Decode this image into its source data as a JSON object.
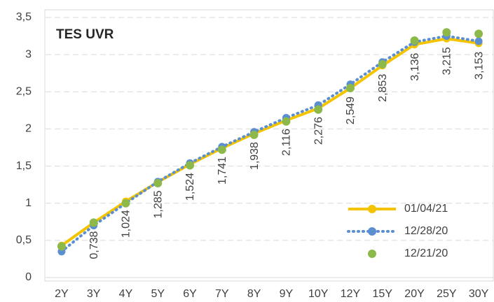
{
  "chart_data": {
    "type": "line",
    "title": "TES UVR",
    "categories": [
      "2Y",
      "3Y",
      "4Y",
      "5Y",
      "6Y",
      "7Y",
      "8Y",
      "9Y",
      "10Y",
      "12Y",
      "15Y",
      "20Y",
      "25Y",
      "30Y"
    ],
    "series": [
      {
        "name": "01/04/21",
        "color": "#f5c400",
        "style": "solid",
        "marker": true,
        "values": [
          0.43,
          0.738,
          1.024,
          1.285,
          1.524,
          1.741,
          1.938,
          2.116,
          2.276,
          2.549,
          2.853,
          3.136,
          3.215,
          3.153
        ],
        "value_labels": [
          null,
          "0,738",
          "1,024",
          "1,285",
          "1,524",
          "1,741",
          "1,938",
          "2,116",
          "2,276",
          "2,549",
          "2,853",
          "3,136",
          "3,215",
          "3,153"
        ]
      },
      {
        "name": "12/28/20",
        "color": "#5b8fd0",
        "style": "dotted",
        "marker": true,
        "values": [
          0.35,
          0.7,
          1.0,
          1.29,
          1.54,
          1.76,
          1.96,
          2.15,
          2.32,
          2.6,
          2.9,
          3.17,
          3.25,
          3.18
        ]
      },
      {
        "name": "12/21/20",
        "color": "#8db94a",
        "style": "none",
        "marker": true,
        "values": [
          0.42,
          0.74,
          1.0,
          1.27,
          1.51,
          1.72,
          1.92,
          2.1,
          2.26,
          2.55,
          2.87,
          3.19,
          3.3,
          3.28
        ]
      }
    ],
    "ylim": [
      0,
      3.5
    ],
    "yticks": [
      0,
      {
        "value": 0.5,
        "label": "0,5"
      },
      1,
      {
        "value": 1.5,
        "label": "1,5"
      },
      2,
      {
        "value": 2.5,
        "label": "2,5"
      },
      3,
      {
        "value": 3.5,
        "label": "3,5"
      }
    ],
    "grid": true,
    "legend": "lower right"
  }
}
